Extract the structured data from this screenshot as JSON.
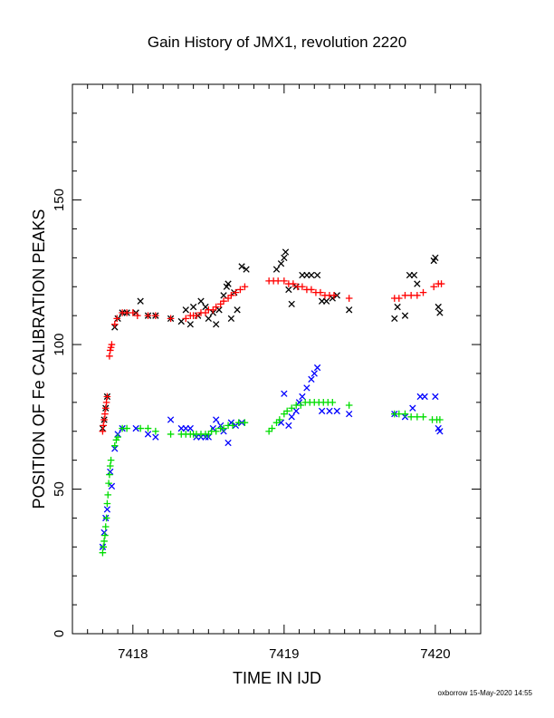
{
  "chart_data": {
    "type": "scatter",
    "title": "Gain History of JMX1, revolution 2220",
    "xlabel": "TIME IN IJD",
    "ylabel": "POSITION OF Fe CALIBRATION PEAKS",
    "xlim": [
      7417.6,
      7420.3
    ],
    "ylim": [
      0,
      190
    ],
    "xticks": [
      7418,
      7419,
      7420
    ],
    "yticks": [
      0,
      50,
      100,
      150
    ],
    "grid": false,
    "footer": "oxborrow 15-May-2020 14:55",
    "series": [
      {
        "marker": "x",
        "color": "#000000",
        "points": [
          [
            7417.8,
            71
          ],
          [
            7417.81,
            74
          ],
          [
            7417.82,
            78
          ],
          [
            7417.83,
            82
          ],
          [
            7417.88,
            106
          ],
          [
            7417.9,
            109
          ],
          [
            7417.93,
            111
          ],
          [
            7417.96,
            111
          ],
          [
            7418.02,
            111
          ],
          [
            7418.05,
            115
          ],
          [
            7418.1,
            110
          ],
          [
            7418.15,
            110
          ],
          [
            7418.25,
            109
          ],
          [
            7418.32,
            108
          ],
          [
            7418.35,
            112
          ],
          [
            7418.38,
            107
          ],
          [
            7418.4,
            113
          ],
          [
            7418.43,
            110
          ],
          [
            7418.45,
            115
          ],
          [
            7418.48,
            113
          ],
          [
            7418.5,
            109
          ],
          [
            7418.53,
            111
          ],
          [
            7418.55,
            107
          ],
          [
            7418.57,
            112
          ],
          [
            7418.6,
            117
          ],
          [
            7418.62,
            120
          ],
          [
            7418.63,
            121
          ],
          [
            7418.65,
            109
          ],
          [
            7418.67,
            118
          ],
          [
            7418.69,
            112
          ],
          [
            7418.72,
            127
          ],
          [
            7418.75,
            126
          ],
          [
            7418.95,
            126
          ],
          [
            7418.98,
            128
          ],
          [
            7419.0,
            130
          ],
          [
            7419.01,
            132
          ],
          [
            7419.03,
            119
          ],
          [
            7419.05,
            114
          ],
          [
            7419.08,
            120
          ],
          [
            7419.12,
            124
          ],
          [
            7419.15,
            124
          ],
          [
            7419.18,
            124
          ],
          [
            7419.22,
            124
          ],
          [
            7419.25,
            115
          ],
          [
            7419.28,
            115
          ],
          [
            7419.32,
            116
          ],
          [
            7419.35,
            117
          ],
          [
            7419.43,
            112
          ],
          [
            7419.73,
            109
          ],
          [
            7419.75,
            113
          ],
          [
            7419.8,
            110
          ],
          [
            7419.83,
            124
          ],
          [
            7419.86,
            124
          ],
          [
            7419.88,
            121
          ],
          [
            7419.99,
            129
          ],
          [
            7420.0,
            130
          ],
          [
            7420.02,
            113
          ],
          [
            7420.03,
            111
          ]
        ]
      },
      {
        "marker": "+",
        "color": "#ff0000",
        "points": [
          [
            7417.8,
            70
          ],
          [
            7417.805,
            72
          ],
          [
            7417.81,
            74
          ],
          [
            7417.815,
            76
          ],
          [
            7417.82,
            78
          ],
          [
            7417.825,
            80
          ],
          [
            7417.83,
            82
          ],
          [
            7417.845,
            96
          ],
          [
            7417.85,
            98
          ],
          [
            7417.855,
            99
          ],
          [
            7417.86,
            100
          ],
          [
            7417.88,
            107
          ],
          [
            7417.895,
            109
          ],
          [
            7417.93,
            111
          ],
          [
            7417.96,
            111
          ],
          [
            7418.0,
            111
          ],
          [
            7418.03,
            110
          ],
          [
            7418.1,
            110
          ],
          [
            7418.15,
            110
          ],
          [
            7418.25,
            109
          ],
          [
            7418.35,
            109
          ],
          [
            7418.38,
            110
          ],
          [
            7418.4,
            110
          ],
          [
            7418.42,
            110
          ],
          [
            7418.45,
            111
          ],
          [
            7418.48,
            111
          ],
          [
            7418.5,
            112
          ],
          [
            7418.53,
            112
          ],
          [
            7418.55,
            113
          ],
          [
            7418.58,
            114
          ],
          [
            7418.6,
            115
          ],
          [
            7418.63,
            116
          ],
          [
            7418.65,
            117
          ],
          [
            7418.68,
            118
          ],
          [
            7418.71,
            119
          ],
          [
            7418.74,
            120
          ],
          [
            7418.9,
            122
          ],
          [
            7418.93,
            122
          ],
          [
            7418.96,
            122
          ],
          [
            7419.0,
            122
          ],
          [
            7419.03,
            121
          ],
          [
            7419.06,
            121
          ],
          [
            7419.09,
            120
          ],
          [
            7419.12,
            120
          ],
          [
            7419.15,
            119
          ],
          [
            7419.18,
            119
          ],
          [
            7419.21,
            118
          ],
          [
            7419.24,
            118
          ],
          [
            7419.27,
            117
          ],
          [
            7419.3,
            117
          ],
          [
            7419.33,
            117
          ],
          [
            7419.43,
            116
          ],
          [
            7419.73,
            116
          ],
          [
            7419.76,
            116
          ],
          [
            7419.8,
            117
          ],
          [
            7419.84,
            117
          ],
          [
            7419.88,
            117
          ],
          [
            7419.92,
            118
          ],
          [
            7419.99,
            120
          ],
          [
            7420.02,
            121
          ],
          [
            7420.04,
            121
          ]
        ]
      },
      {
        "marker": "x",
        "color": "#0000ff",
        "points": [
          [
            7417.8,
            30
          ],
          [
            7417.81,
            35
          ],
          [
            7417.82,
            40
          ],
          [
            7417.83,
            43
          ],
          [
            7417.85,
            56
          ],
          [
            7417.86,
            51
          ],
          [
            7417.88,
            64
          ],
          [
            7417.9,
            69
          ],
          [
            7417.93,
            71
          ],
          [
            7418.02,
            71
          ],
          [
            7418.1,
            69
          ],
          [
            7418.15,
            68
          ],
          [
            7418.25,
            74
          ],
          [
            7418.32,
            71
          ],
          [
            7418.35,
            71
          ],
          [
            7418.38,
            71
          ],
          [
            7418.42,
            68
          ],
          [
            7418.45,
            68
          ],
          [
            7418.48,
            68
          ],
          [
            7418.5,
            68
          ],
          [
            7418.53,
            71
          ],
          [
            7418.55,
            74
          ],
          [
            7418.58,
            72
          ],
          [
            7418.6,
            70
          ],
          [
            7418.63,
            66
          ],
          [
            7418.65,
            73
          ],
          [
            7418.68,
            72
          ],
          [
            7418.72,
            73
          ],
          [
            7418.98,
            73
          ],
          [
            7419.0,
            83
          ],
          [
            7419.03,
            72
          ],
          [
            7419.05,
            75
          ],
          [
            7419.08,
            77
          ],
          [
            7419.1,
            80
          ],
          [
            7419.12,
            82
          ],
          [
            7419.15,
            85
          ],
          [
            7419.18,
            88
          ],
          [
            7419.2,
            90
          ],
          [
            7419.22,
            92
          ],
          [
            7419.25,
            77
          ],
          [
            7419.3,
            77
          ],
          [
            7419.35,
            77
          ],
          [
            7419.43,
            76
          ],
          [
            7419.73,
            76
          ],
          [
            7419.8,
            75
          ],
          [
            7419.85,
            78
          ],
          [
            7419.9,
            82
          ],
          [
            7419.93,
            82
          ],
          [
            7420.0,
            82
          ],
          [
            7420.02,
            71
          ],
          [
            7420.03,
            70
          ]
        ]
      },
      {
        "marker": "+",
        "color": "#00dd00",
        "points": [
          [
            7417.8,
            28
          ],
          [
            7417.805,
            30
          ],
          [
            7417.81,
            32
          ],
          [
            7417.815,
            34
          ],
          [
            7417.82,
            37
          ],
          [
            7417.825,
            40
          ],
          [
            7417.83,
            45
          ],
          [
            7417.835,
            48
          ],
          [
            7417.84,
            52
          ],
          [
            7417.845,
            55
          ],
          [
            7417.85,
            58
          ],
          [
            7417.855,
            60
          ],
          [
            7417.88,
            65
          ],
          [
            7417.89,
            67
          ],
          [
            7417.9,
            68
          ],
          [
            7417.93,
            71
          ],
          [
            7417.96,
            71
          ],
          [
            7418.05,
            71
          ],
          [
            7418.1,
            71
          ],
          [
            7418.15,
            70
          ],
          [
            7418.25,
            69
          ],
          [
            7418.32,
            69
          ],
          [
            7418.35,
            69
          ],
          [
            7418.38,
            69
          ],
          [
            7418.4,
            69
          ],
          [
            7418.42,
            69
          ],
          [
            7418.45,
            69
          ],
          [
            7418.48,
            69
          ],
          [
            7418.5,
            69
          ],
          [
            7418.52,
            70
          ],
          [
            7418.55,
            70
          ],
          [
            7418.58,
            71
          ],
          [
            7418.6,
            71
          ],
          [
            7418.63,
            72
          ],
          [
            7418.66,
            72
          ],
          [
            7418.7,
            73
          ],
          [
            7418.74,
            73
          ],
          [
            7418.9,
            70
          ],
          [
            7418.92,
            71
          ],
          [
            7418.95,
            73
          ],
          [
            7418.97,
            74
          ],
          [
            7419.0,
            76
          ],
          [
            7419.02,
            77
          ],
          [
            7419.05,
            78
          ],
          [
            7419.08,
            79
          ],
          [
            7419.11,
            79
          ],
          [
            7419.14,
            80
          ],
          [
            7419.17,
            80
          ],
          [
            7419.2,
            80
          ],
          [
            7419.23,
            80
          ],
          [
            7419.26,
            80
          ],
          [
            7419.29,
            80
          ],
          [
            7419.32,
            80
          ],
          [
            7419.43,
            79
          ],
          [
            7419.73,
            76
          ],
          [
            7419.76,
            76
          ],
          [
            7419.8,
            76
          ],
          [
            7419.84,
            75
          ],
          [
            7419.88,
            75
          ],
          [
            7419.92,
            75
          ],
          [
            7419.98,
            74
          ],
          [
            7420.01,
            74
          ],
          [
            7420.03,
            74
          ]
        ]
      }
    ]
  }
}
